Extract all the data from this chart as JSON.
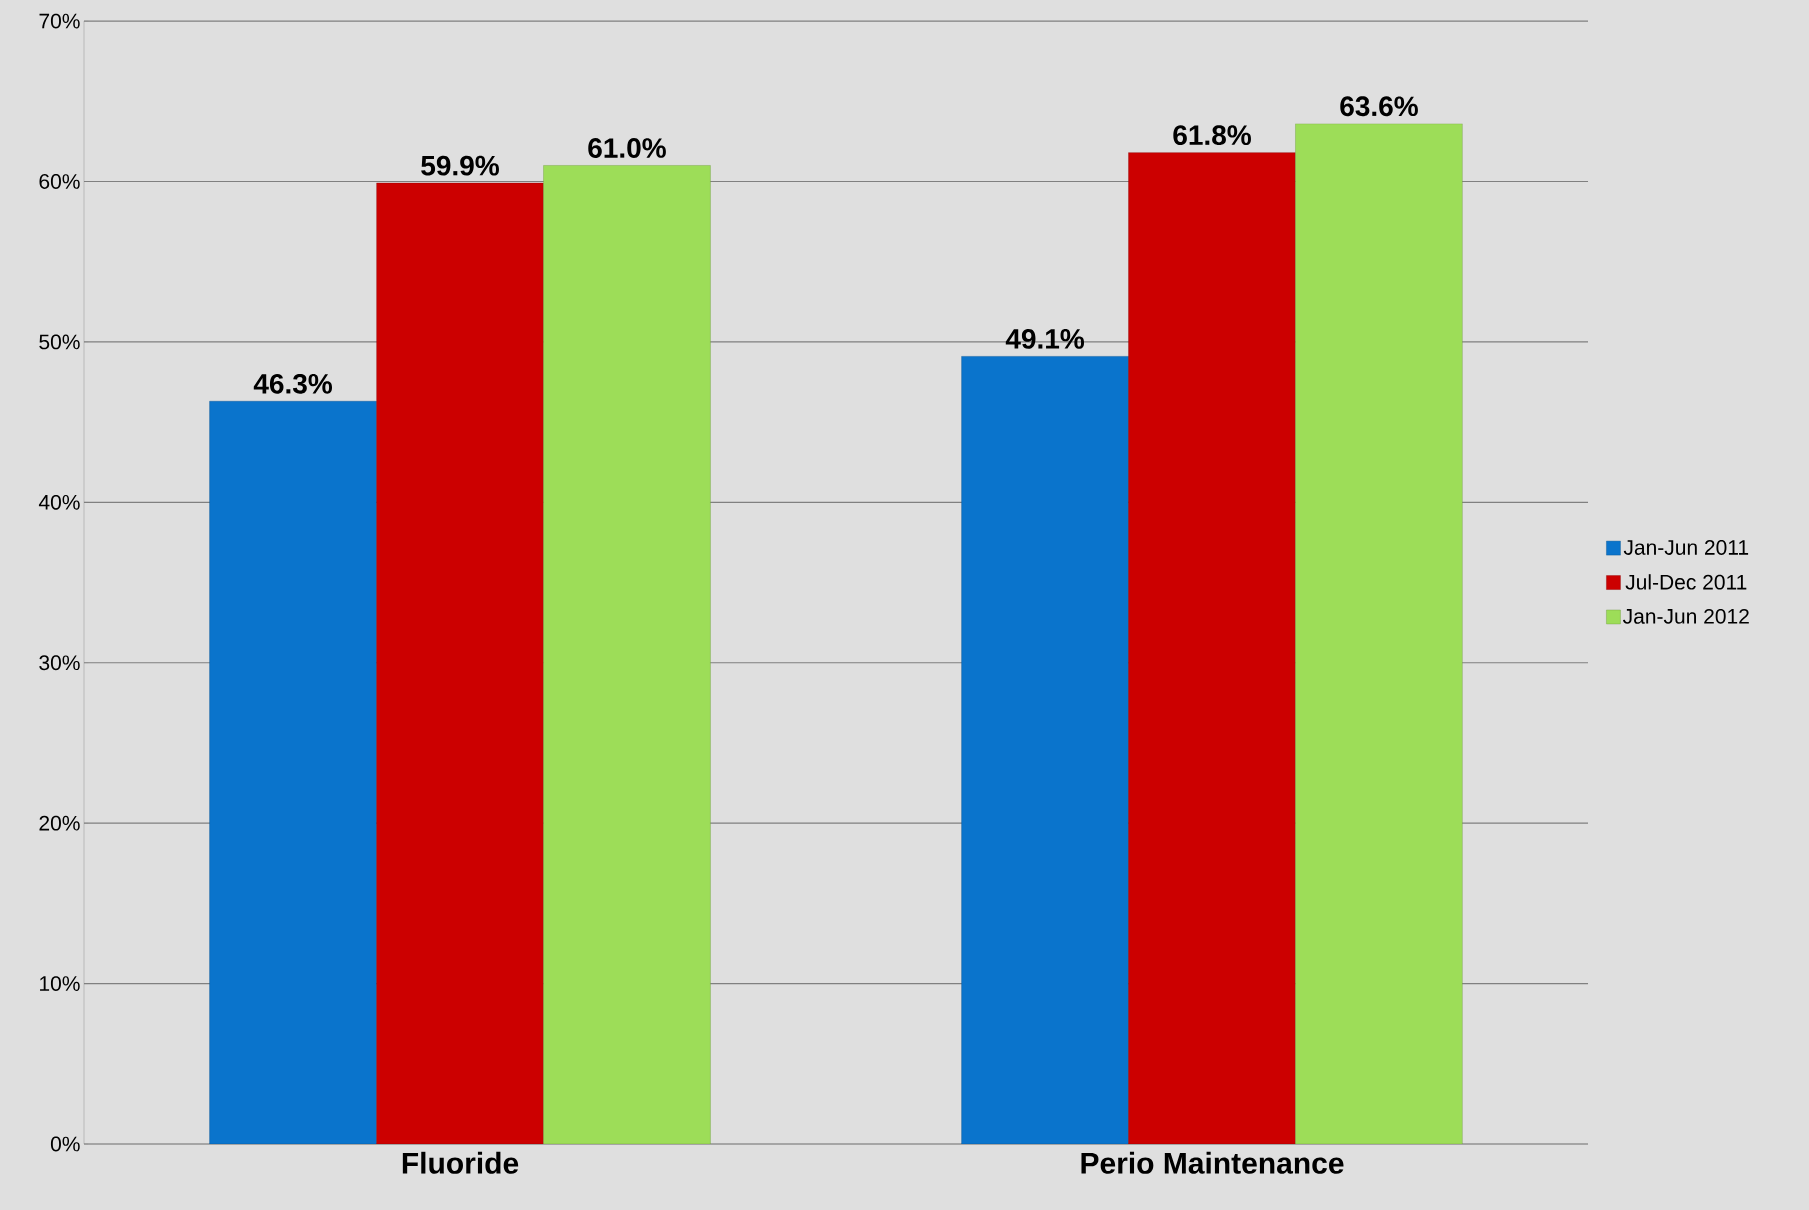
{
  "chart_data": {
    "type": "bar",
    "categories": [
      "Fluoride",
      "Perio Maintenance"
    ],
    "series": [
      {
        "name": "Jan-Jun 2011",
        "color": "#0a74cc",
        "values": [
          46.3,
          49.1
        ],
        "value_labels": [
          "46.3%",
          "49.1%"
        ]
      },
      {
        "name": "Jul-Dec 2011",
        "color": "#cc0000",
        "values": [
          59.9,
          61.8
        ],
        "value_labels": [
          "59.9%",
          "61.8%"
        ]
      },
      {
        "name": "Jan-Jun 2012",
        "color": "#9ddd58",
        "values": [
          61.0,
          63.6
        ],
        "value_labels": [
          "61.0%",
          "63.6%"
        ]
      }
    ],
    "ylim": [
      0,
      70
    ],
    "yticks": [
      {
        "value": 0,
        "label": "0%"
      },
      {
        "value": 10,
        "label": "10%"
      },
      {
        "value": 20,
        "label": "20%"
      },
      {
        "value": 30,
        "label": "30%"
      },
      {
        "value": 40,
        "label": "40%"
      },
      {
        "value": 50,
        "label": "50%"
      },
      {
        "value": 60,
        "label": "60%"
      },
      {
        "value": 70,
        "label": "70%"
      }
    ],
    "grid": "y",
    "legend": "right"
  }
}
